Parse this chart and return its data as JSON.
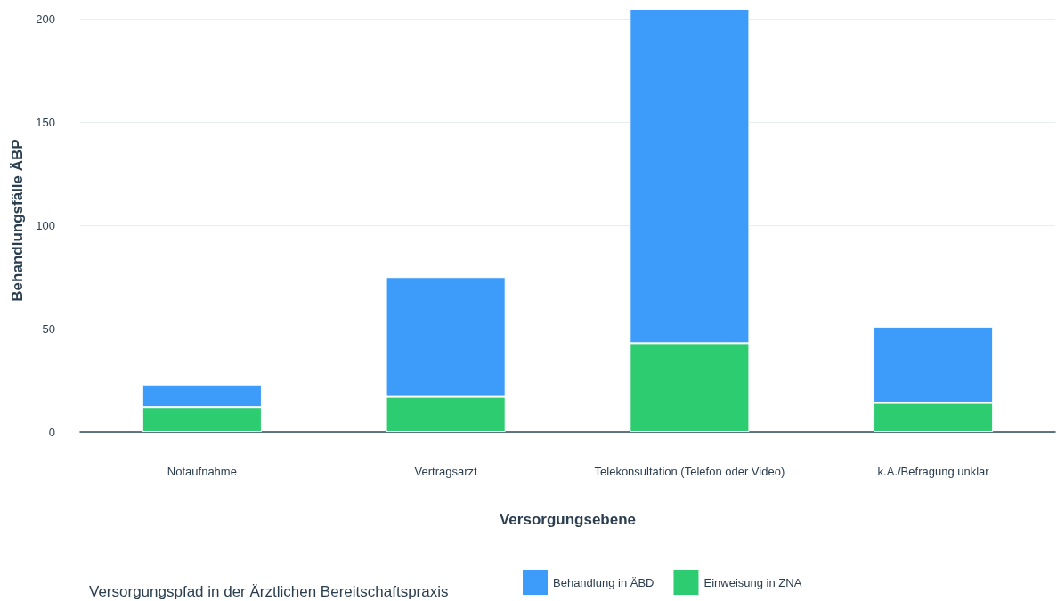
{
  "chart_data": {
    "type": "bar",
    "stacked": true,
    "xlabel": "Versorgungsebene",
    "ylabel": "Behandlungsfälle ÄBP",
    "legend_title": "Versorgungspfad in der Ärztlichen Bereitschaftspraxis",
    "categories": [
      "Notaufnahme",
      "Vertragsarzt",
      "Telekonsultation (Telefon oder Video)",
      "k.A./Befragung unklar"
    ],
    "series": [
      {
        "name": "Einweisung in ZNA",
        "color": "#2ecc71",
        "values": [
          12,
          17,
          43,
          14
        ]
      },
      {
        "name": "Behandlung in ÄBD",
        "color": "#3d9bfa",
        "values": [
          11,
          58,
          162,
          37
        ]
      }
    ],
    "ylim": [
      0,
      205
    ],
    "yticks": [
      0,
      50,
      100,
      150,
      200
    ],
    "grid": "y",
    "legend": "bottom"
  }
}
